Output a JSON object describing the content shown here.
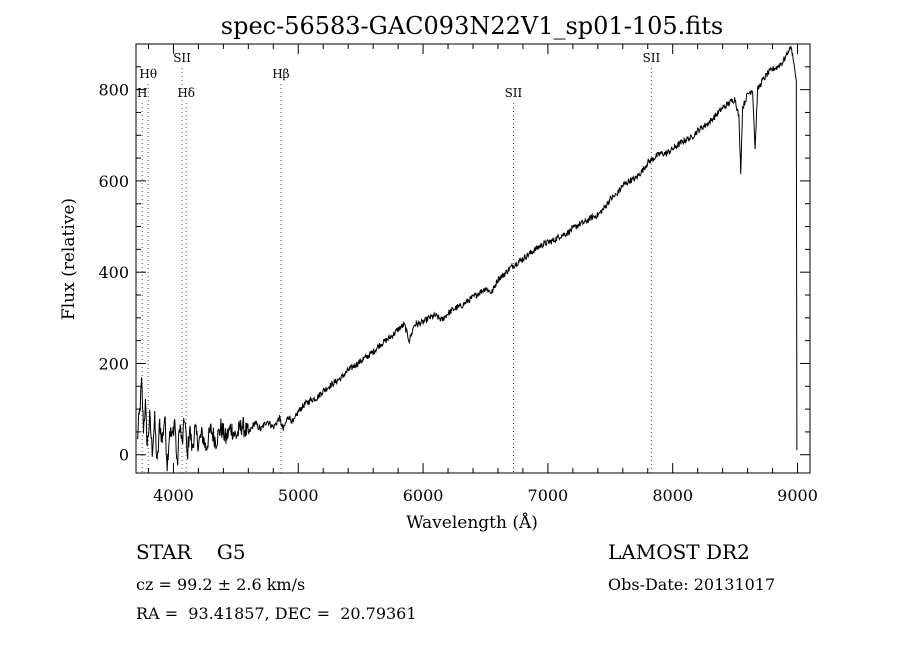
{
  "chart_data": {
    "type": "line",
    "title": "spec-56583-GAC093N22V1_sp01-105.fits",
    "xlabel": "Wavelength (Å)",
    "ylabel": "Flux (relative)",
    "xlim": [
      3700,
      9100
    ],
    "ylim": [
      -40,
      900
    ],
    "x_ticks": [
      4000,
      5000,
      6000,
      7000,
      8000,
      9000
    ],
    "y_ticks": [
      0,
      200,
      400,
      600,
      800
    ],
    "grid": false,
    "spectral_lines": [
      {
        "name": "Hθ",
        "wavelength": 3798,
        "tier": 1
      },
      {
        "name": "H",
        "wavelength": 3750,
        "tier": 2
      },
      {
        "name": "SII",
        "wavelength": 4069,
        "tier": 0
      },
      {
        "name": "Hδ",
        "wavelength": 4102,
        "tier": 2
      },
      {
        "name": "Hβ",
        "wavelength": 4861,
        "tier": 1
      },
      {
        "name": "SII",
        "wavelength": 6724,
        "tier": 2
      },
      {
        "name": "SII",
        "wavelength": 7829,
        "tier": 0
      }
    ],
    "series": [
      {
        "color": "#000000",
        "points": [
          [
            3710,
            30
          ],
          [
            3730,
            95
          ],
          [
            3745,
            155
          ],
          [
            3760,
            60
          ],
          [
            3775,
            110
          ],
          [
            3790,
            20
          ],
          [
            3810,
            80
          ],
          [
            3830,
            10
          ],
          [
            3850,
            75
          ],
          [
            3870,
            -25
          ],
          [
            3890,
            70
          ],
          [
            3910,
            30
          ],
          [
            3930,
            85
          ],
          [
            3950,
            -20
          ],
          [
            3970,
            55
          ],
          [
            3990,
            35
          ],
          [
            4010,
            80
          ],
          [
            4030,
            -30
          ],
          [
            4050,
            70
          ],
          [
            4070,
            20
          ],
          [
            4090,
            85
          ],
          [
            4110,
            -5
          ],
          [
            4130,
            60
          ],
          [
            4150,
            10
          ],
          [
            4170,
            55
          ],
          [
            4200,
            25
          ],
          [
            4230,
            45
          ],
          [
            4260,
            15
          ],
          [
            4300,
            55
          ],
          [
            4340,
            30
          ],
          [
            4380,
            60
          ],
          [
            4420,
            35
          ],
          [
            4460,
            60
          ],
          [
            4500,
            40
          ],
          [
            4550,
            65
          ],
          [
            4600,
            45
          ],
          [
            4650,
            70
          ],
          [
            4700,
            55
          ],
          [
            4750,
            75
          ],
          [
            4800,
            60
          ],
          [
            4850,
            80
          ],
          [
            4880,
            55
          ],
          [
            4920,
            85
          ],
          [
            4960,
            70
          ],
          [
            5000,
            95
          ],
          [
            5050,
            110
          ],
          [
            5100,
            120
          ],
          [
            5150,
            125
          ],
          [
            5200,
            140
          ],
          [
            5250,
            150
          ],
          [
            5300,
            160
          ],
          [
            5350,
            170
          ],
          [
            5400,
            185
          ],
          [
            5450,
            195
          ],
          [
            5500,
            205
          ],
          [
            5550,
            215
          ],
          [
            5600,
            225
          ],
          [
            5650,
            240
          ],
          [
            5700,
            250
          ],
          [
            5750,
            260
          ],
          [
            5800,
            275
          ],
          [
            5850,
            285
          ],
          [
            5890,
            250
          ],
          [
            5930,
            285
          ],
          [
            6000,
            290
          ],
          [
            6050,
            300
          ],
          [
            6100,
            305
          ],
          [
            6150,
            295
          ],
          [
            6200,
            310
          ],
          [
            6250,
            320
          ],
          [
            6300,
            325
          ],
          [
            6350,
            335
          ],
          [
            6400,
            345
          ],
          [
            6450,
            355
          ],
          [
            6500,
            365
          ],
          [
            6550,
            355
          ],
          [
            6600,
            385
          ],
          [
            6650,
            395
          ],
          [
            6700,
            410
          ],
          [
            6750,
            420
          ],
          [
            6800,
            430
          ],
          [
            6850,
            440
          ],
          [
            6900,
            450
          ],
          [
            6950,
            460
          ],
          [
            7000,
            465
          ],
          [
            7050,
            470
          ],
          [
            7100,
            480
          ],
          [
            7150,
            485
          ],
          [
            7200,
            495
          ],
          [
            7250,
            505
          ],
          [
            7300,
            510
          ],
          [
            7350,
            520
          ],
          [
            7400,
            525
          ],
          [
            7450,
            540
          ],
          [
            7500,
            560
          ],
          [
            7550,
            570
          ],
          [
            7600,
            590
          ],
          [
            7650,
            600
          ],
          [
            7700,
            605
          ],
          [
            7750,
            620
          ],
          [
            7800,
            640
          ],
          [
            7850,
            650
          ],
          [
            7900,
            660
          ],
          [
            7950,
            660
          ],
          [
            8000,
            670
          ],
          [
            8050,
            680
          ],
          [
            8100,
            690
          ],
          [
            8150,
            695
          ],
          [
            8200,
            710
          ],
          [
            8250,
            720
          ],
          [
            8300,
            730
          ],
          [
            8350,
            745
          ],
          [
            8400,
            760
          ],
          [
            8450,
            770
          ],
          [
            8500,
            780
          ],
          [
            8530,
            740
          ],
          [
            8545,
            620
          ],
          [
            8560,
            760
          ],
          [
            8600,
            790
          ],
          [
            8640,
            800
          ],
          [
            8660,
            670
          ],
          [
            8680,
            800
          ],
          [
            8720,
            820
          ],
          [
            8760,
            835
          ],
          [
            8800,
            845
          ],
          [
            8840,
            850
          ],
          [
            8880,
            860
          ],
          [
            8920,
            880
          ],
          [
            8945,
            895
          ],
          [
            8965,
            870
          ],
          [
            8990,
            820
          ],
          [
            8995,
            10
          ]
        ]
      }
    ]
  },
  "info": {
    "class_line": "STAR    G5",
    "cz_line": "cz = 99.2 ± 2.6 km/s",
    "coord_line": "RA =  93.41857, DEC =  20.79361",
    "survey": "LAMOST DR2",
    "obs_date": "Obs-Date: 20131017"
  }
}
